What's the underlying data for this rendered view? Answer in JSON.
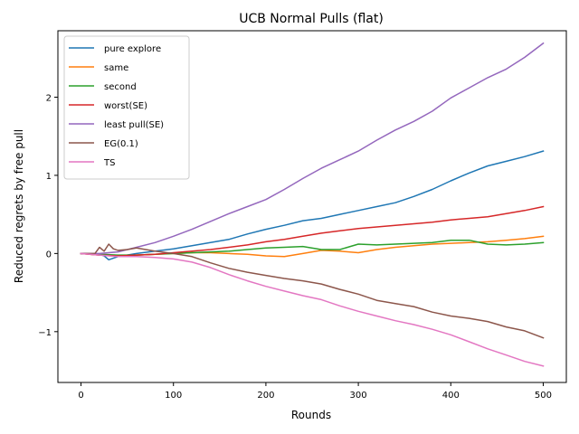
{
  "chart_data": {
    "type": "line",
    "title": "UCB Normal Pulls (flat)",
    "xlabel": "Rounds",
    "ylabel": "Reduced regrets by free pull",
    "xlim": [
      -25,
      525
    ],
    "ylim": [
      -1.65,
      2.85
    ],
    "xticks": [
      0,
      100,
      200,
      300,
      400,
      500
    ],
    "yticks": [
      -1,
      0,
      1,
      2
    ],
    "xtick_labels": [
      "0",
      "100",
      "200",
      "300",
      "400",
      "500"
    ],
    "ytick_labels": [
      "−1",
      "0",
      "1",
      "2"
    ],
    "grid": false,
    "legend_position": "upper-left",
    "series": [
      {
        "name": "pure explore",
        "color": "#1f77b4",
        "x": [
          0,
          20,
          25,
          30,
          40,
          50,
          60,
          80,
          100,
          120,
          140,
          160,
          180,
          200,
          220,
          240,
          260,
          280,
          300,
          320,
          340,
          360,
          380,
          400,
          420,
          440,
          460,
          480,
          500
        ],
        "y": [
          0.0,
          -0.01,
          -0.03,
          -0.08,
          -0.04,
          -0.02,
          0.0,
          0.03,
          0.06,
          0.1,
          0.14,
          0.18,
          0.25,
          0.31,
          0.36,
          0.42,
          0.45,
          0.5,
          0.55,
          0.6,
          0.65,
          0.73,
          0.82,
          0.93,
          1.03,
          1.12,
          1.18,
          1.24,
          1.31
        ]
      },
      {
        "name": "same",
        "color": "#ff7f0e",
        "x": [
          0,
          20,
          40,
          60,
          80,
          100,
          120,
          140,
          160,
          180,
          200,
          220,
          240,
          260,
          280,
          300,
          320,
          340,
          360,
          380,
          400,
          420,
          440,
          460,
          480,
          500
        ],
        "y": [
          0.0,
          -0.02,
          -0.03,
          -0.02,
          -0.01,
          0.0,
          0.01,
          0.01,
          0.0,
          -0.01,
          -0.03,
          -0.04,
          0.0,
          0.04,
          0.03,
          0.01,
          0.05,
          0.08,
          0.1,
          0.12,
          0.13,
          0.14,
          0.15,
          0.17,
          0.19,
          0.22
        ]
      },
      {
        "name": "second",
        "color": "#2ca02c",
        "x": [
          0,
          20,
          40,
          60,
          80,
          100,
          120,
          140,
          160,
          180,
          200,
          220,
          240,
          260,
          280,
          300,
          320,
          340,
          360,
          380,
          400,
          420,
          440,
          460,
          480,
          500
        ],
        "y": [
          0.0,
          -0.01,
          -0.02,
          -0.02,
          -0.01,
          0.0,
          0.01,
          0.02,
          0.03,
          0.05,
          0.07,
          0.08,
          0.09,
          0.05,
          0.05,
          0.12,
          0.11,
          0.12,
          0.13,
          0.14,
          0.17,
          0.17,
          0.12,
          0.11,
          0.12,
          0.14
        ]
      },
      {
        "name": "worst(SE)",
        "color": "#d62728",
        "x": [
          0,
          20,
          40,
          60,
          80,
          100,
          120,
          140,
          160,
          180,
          200,
          220,
          240,
          260,
          280,
          300,
          320,
          340,
          360,
          380,
          400,
          420,
          440,
          460,
          480,
          500
        ],
        "y": [
          0.0,
          -0.02,
          -0.03,
          -0.02,
          -0.01,
          0.01,
          0.03,
          0.05,
          0.08,
          0.11,
          0.15,
          0.18,
          0.22,
          0.26,
          0.29,
          0.32,
          0.34,
          0.36,
          0.38,
          0.4,
          0.43,
          0.45,
          0.47,
          0.51,
          0.55,
          0.6
        ]
      },
      {
        "name": "least pull(SE)",
        "color": "#9467bd",
        "x": [
          0,
          20,
          40,
          60,
          80,
          100,
          120,
          140,
          160,
          180,
          200,
          220,
          240,
          260,
          280,
          300,
          320,
          340,
          360,
          380,
          400,
          420,
          440,
          460,
          480,
          500
        ],
        "y": [
          0.0,
          0.0,
          0.02,
          0.08,
          0.14,
          0.22,
          0.31,
          0.41,
          0.51,
          0.6,
          0.69,
          0.82,
          0.96,
          1.09,
          1.2,
          1.31,
          1.45,
          1.58,
          1.69,
          1.82,
          1.99,
          2.12,
          2.25,
          2.36,
          2.51,
          2.69
        ]
      },
      {
        "name": "EG(0.1)",
        "color": "#8c564b",
        "x": [
          0,
          15,
          20,
          25,
          30,
          35,
          40,
          50,
          60,
          80,
          100,
          120,
          140,
          160,
          180,
          200,
          220,
          240,
          260,
          280,
          300,
          320,
          340,
          360,
          380,
          400,
          420,
          440,
          460,
          480,
          500
        ],
        "y": [
          0.0,
          0.0,
          0.08,
          0.03,
          0.12,
          0.06,
          0.04,
          0.05,
          0.07,
          0.03,
          0.0,
          -0.04,
          -0.12,
          -0.19,
          -0.24,
          -0.28,
          -0.32,
          -0.35,
          -0.39,
          -0.46,
          -0.52,
          -0.6,
          -0.64,
          -0.68,
          -0.75,
          -0.8,
          -0.83,
          -0.87,
          -0.94,
          -0.99,
          -1.08
        ]
      },
      {
        "name": "TS",
        "color": "#e377c2",
        "x": [
          0,
          20,
          40,
          60,
          80,
          100,
          120,
          140,
          160,
          180,
          200,
          220,
          240,
          260,
          280,
          300,
          320,
          340,
          360,
          380,
          400,
          420,
          440,
          460,
          480,
          500
        ],
        "y": [
          0.0,
          -0.02,
          -0.04,
          -0.04,
          -0.05,
          -0.07,
          -0.11,
          -0.18,
          -0.27,
          -0.35,
          -0.42,
          -0.48,
          -0.54,
          -0.59,
          -0.67,
          -0.74,
          -0.8,
          -0.86,
          -0.91,
          -0.97,
          -1.04,
          -1.13,
          -1.22,
          -1.3,
          -1.38,
          -1.44
        ]
      }
    ]
  }
}
